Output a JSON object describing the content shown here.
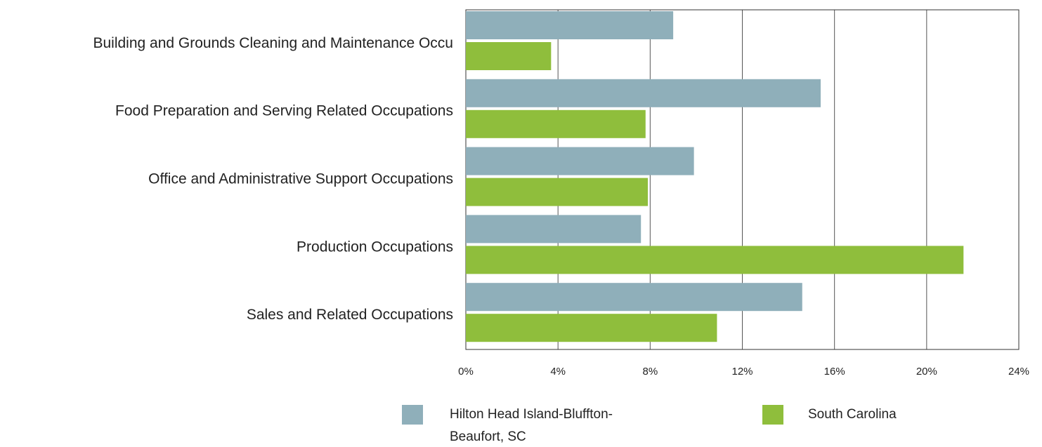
{
  "chart_data": {
    "type": "bar",
    "orientation": "horizontal",
    "categories": [
      "Building and Grounds Cleaning and Maintenance Occu",
      "Food Preparation and Serving Related Occupations",
      "Office and Administrative Support Occupations",
      "Production Occupations",
      "Sales and Related Occupations"
    ],
    "series": [
      {
        "name": "Hilton Head Island-Bluffton-Beaufort, SC",
        "color": "#8fafba",
        "values": [
          9.0,
          15.4,
          9.9,
          7.6,
          14.6
        ]
      },
      {
        "name": "South Carolina",
        "color": "#8fbe3c",
        "values": [
          3.7,
          7.8,
          7.9,
          21.6,
          10.9
        ]
      }
    ],
    "xlim": [
      0,
      24
    ],
    "xticks": [
      {
        "value": 0,
        "label": "0%"
      },
      {
        "value": 4,
        "label": "4%"
      },
      {
        "value": 8,
        "label": "8%"
      },
      {
        "value": 12,
        "label": "12%"
      },
      {
        "value": 16,
        "label": "16%"
      },
      {
        "value": 20,
        "label": "20%"
      },
      {
        "value": 24,
        "label": "24%"
      }
    ],
    "grid": true
  }
}
